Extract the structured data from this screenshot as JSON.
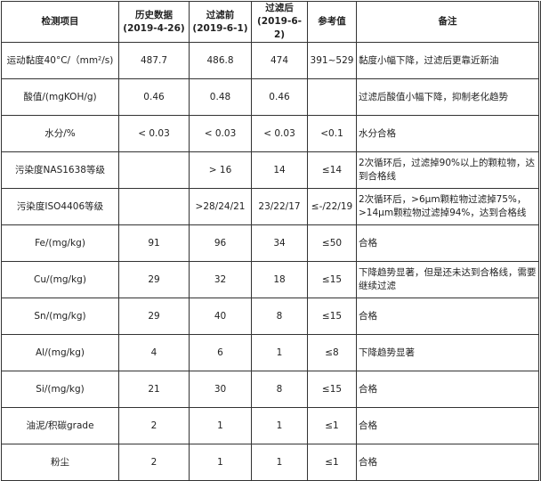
{
  "headers": [
    [
      "检测项目"
    ],
    [
      "历史数据",
      "(2019-4-26)"
    ],
    [
      "过滤前",
      "(2019-6-1)"
    ],
    [
      "过滤后",
      "(2019-6-2)"
    ],
    [
      "参考值"
    ],
    [
      "备注"
    ]
  ],
  "rows": [
    {
      "item": "运动黏度40°C/（mm²/s)",
      "history": "487.7",
      "before": "486.8",
      "after": "474",
      "reference": "391~529",
      "note": "黏度小幅下降，过滤后更靠近新油"
    },
    {
      "item": "酸值/(mgKOH/g)",
      "history": "0.46",
      "before": "0.48",
      "after": "0.46",
      "reference": "",
      "note": "过滤后酸值小幅下降，抑制老化趋势"
    },
    {
      "item": "水分/%",
      "history": "< 0.03",
      "before": "< 0.03",
      "after": "< 0.03",
      "reference": "<0.1",
      "note": "水分合格"
    },
    {
      "item": "污染度NAS1638等级",
      "history": "",
      "before": "> 16",
      "after": "14",
      "reference": "≤14",
      "note": "2次循环后，过滤掉90%以上的颗粒物，达到合格线"
    },
    {
      "item": "污染度ISO4406等级",
      "history": "",
      "before": ">28/24/21",
      "after": "23/22/17",
      "reference": "≤-/22/19",
      "note": "2次循环后，>6μm颗粒物过滤掉75%，>14μm颗粒物过滤掉94%，达到合格线"
    },
    {
      "item": "Fe/(mg/kg)",
      "history": "91",
      "before": "96",
      "after": "34",
      "reference": "≤50",
      "note": "合格"
    },
    {
      "item": "Cu/(mg/kg)",
      "history": "29",
      "before": "32",
      "after": "18",
      "reference": "≤15",
      "note": "下降趋势显著，但是还未达到合格线，需要继续过滤"
    },
    {
      "item": "Sn/(mg/kg)",
      "history": "29",
      "before": "40",
      "after": "8",
      "reference": "≤15",
      "note": "合格"
    },
    {
      "item": "Al/(mg/kg)",
      "history": "4",
      "before": "6",
      "after": "1",
      "reference": "≤8",
      "note": "下降趋势显著"
    },
    {
      "item": "Si/(mg/kg)",
      "history": "21",
      "before": "30",
      "after": "8",
      "reference": "≤15",
      "note": "合格"
    },
    {
      "item": "油泥/积碳grade",
      "history": "2",
      "before": "1",
      "after": "1",
      "reference": "≤1",
      "note": "合格"
    },
    {
      "item": "粉尘",
      "history": "2",
      "before": "1",
      "after": "1",
      "reference": "≤1",
      "note": "合格"
    }
  ]
}
